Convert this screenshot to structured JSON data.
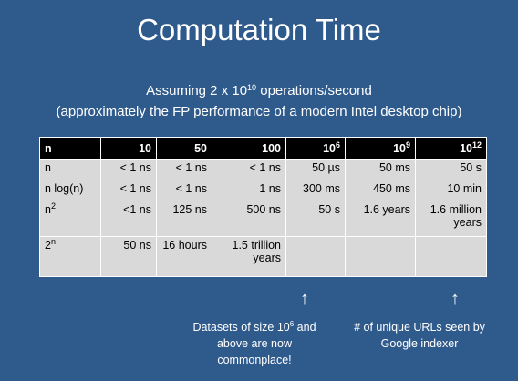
{
  "title": "Computation Time",
  "subtitle": {
    "line1_prefix": "Assuming 2 x 10",
    "line1_exp": "10",
    "line1_suffix": " operations/second",
    "line2": "(approximately the FP performance of a modern Intel desktop chip)"
  },
  "table": {
    "headers": [
      {
        "base": "n",
        "exp": ""
      },
      {
        "base": "10",
        "exp": ""
      },
      {
        "base": "50",
        "exp": ""
      },
      {
        "base": "100",
        "exp": ""
      },
      {
        "base": "10",
        "exp": "6"
      },
      {
        "base": "10",
        "exp": "9"
      },
      {
        "base": "10",
        "exp": "12"
      }
    ],
    "rows": [
      {
        "label": "n",
        "label_exp": "",
        "cells": [
          "< 1 ns",
          "< 1 ns",
          "< 1 ns",
          "50 µs",
          "50 ms",
          "50 s"
        ]
      },
      {
        "label": "n log(n)",
        "label_exp": "",
        "cells": [
          "< 1 ns",
          "< 1 ns",
          "1 ns",
          "300 ms",
          "450 ms",
          "10 min"
        ]
      },
      {
        "label": "n",
        "label_exp": "2",
        "cells": [
          "<1 ns",
          "125 ns",
          "500 ns",
          "50 s",
          "1.6 years",
          "1.6 million years"
        ]
      },
      {
        "label": "2",
        "label_exp": "n",
        "cells": [
          "50 ns",
          "16 hours",
          "1.5 trillion years",
          "",
          "",
          ""
        ]
      }
    ]
  },
  "annotations": {
    "arrow_glyph": "↑",
    "note1_prefix": "Datasets of size 10",
    "note1_exp": "6",
    "note1_suffix": " and above are now commonplace!",
    "note2": "# of unique URLs seen by Google indexer"
  }
}
